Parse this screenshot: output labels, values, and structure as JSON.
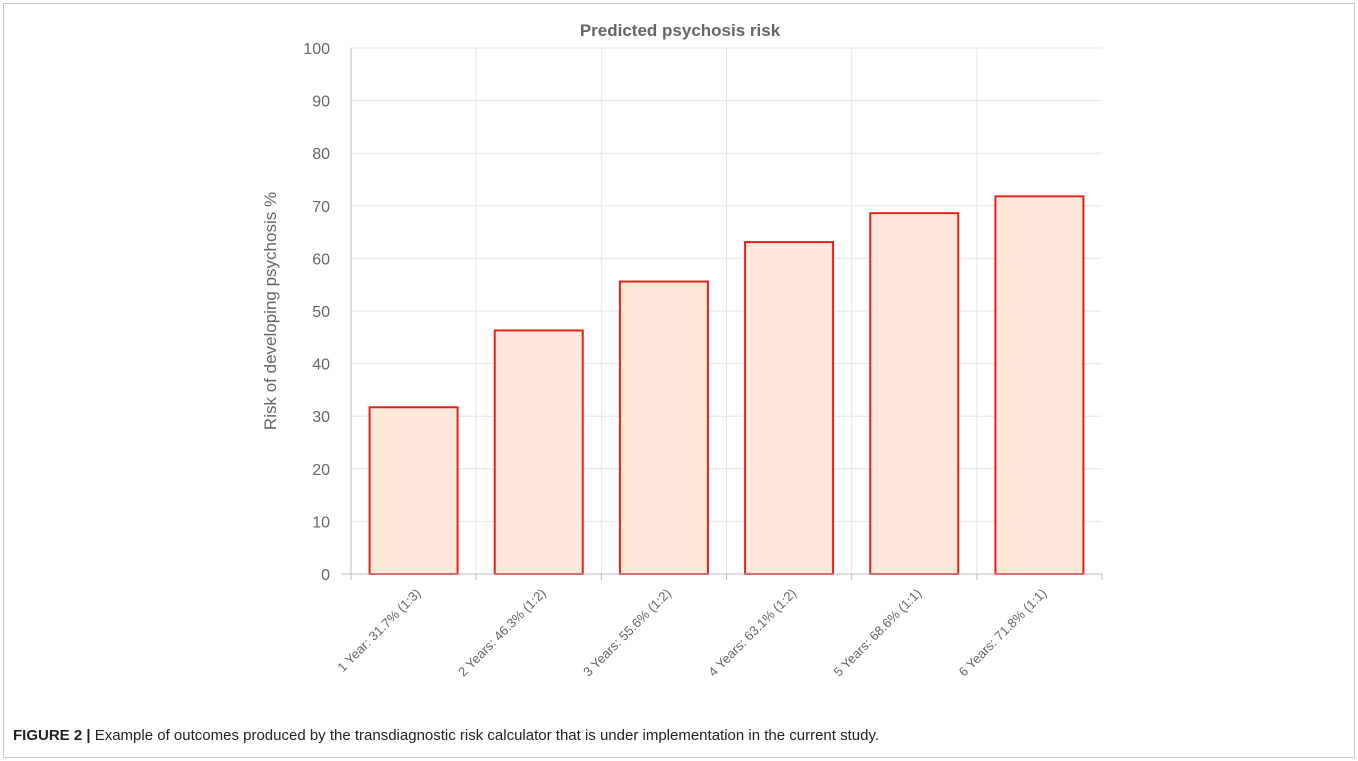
{
  "chart_data": {
    "type": "bar",
    "title": "Predicted psychosis risk",
    "ylabel": "Risk of developing psychosis %",
    "xlabel": "",
    "ylim": [
      0,
      100
    ],
    "yticks": [
      0,
      10,
      20,
      30,
      40,
      50,
      60,
      70,
      80,
      90,
      100
    ],
    "grid": true,
    "categories": [
      "1 Year: 31.7% (1:3)",
      "2 Years: 46.3% (1:2)",
      "3 Years: 55.6% (1:2)",
      "4 Years: 63.1% (1:2)",
      "5 Years: 68.6% (1:1)",
      "6 Years: 71.8% (1:1)"
    ],
    "values": [
      31.7,
      46.3,
      55.6,
      63.1,
      68.6,
      71.8
    ],
    "colors": {
      "bar_fill": "#fde8da",
      "bar_stroke": "#e8201c",
      "grid": "#e6e6e6",
      "axis": "#bdbdbd",
      "text": "#666666"
    }
  },
  "caption": {
    "label": "FIGURE 2 |",
    "text": " Example of outcomes produced by the transdiagnostic risk calculator that is under implementation in the current study."
  }
}
